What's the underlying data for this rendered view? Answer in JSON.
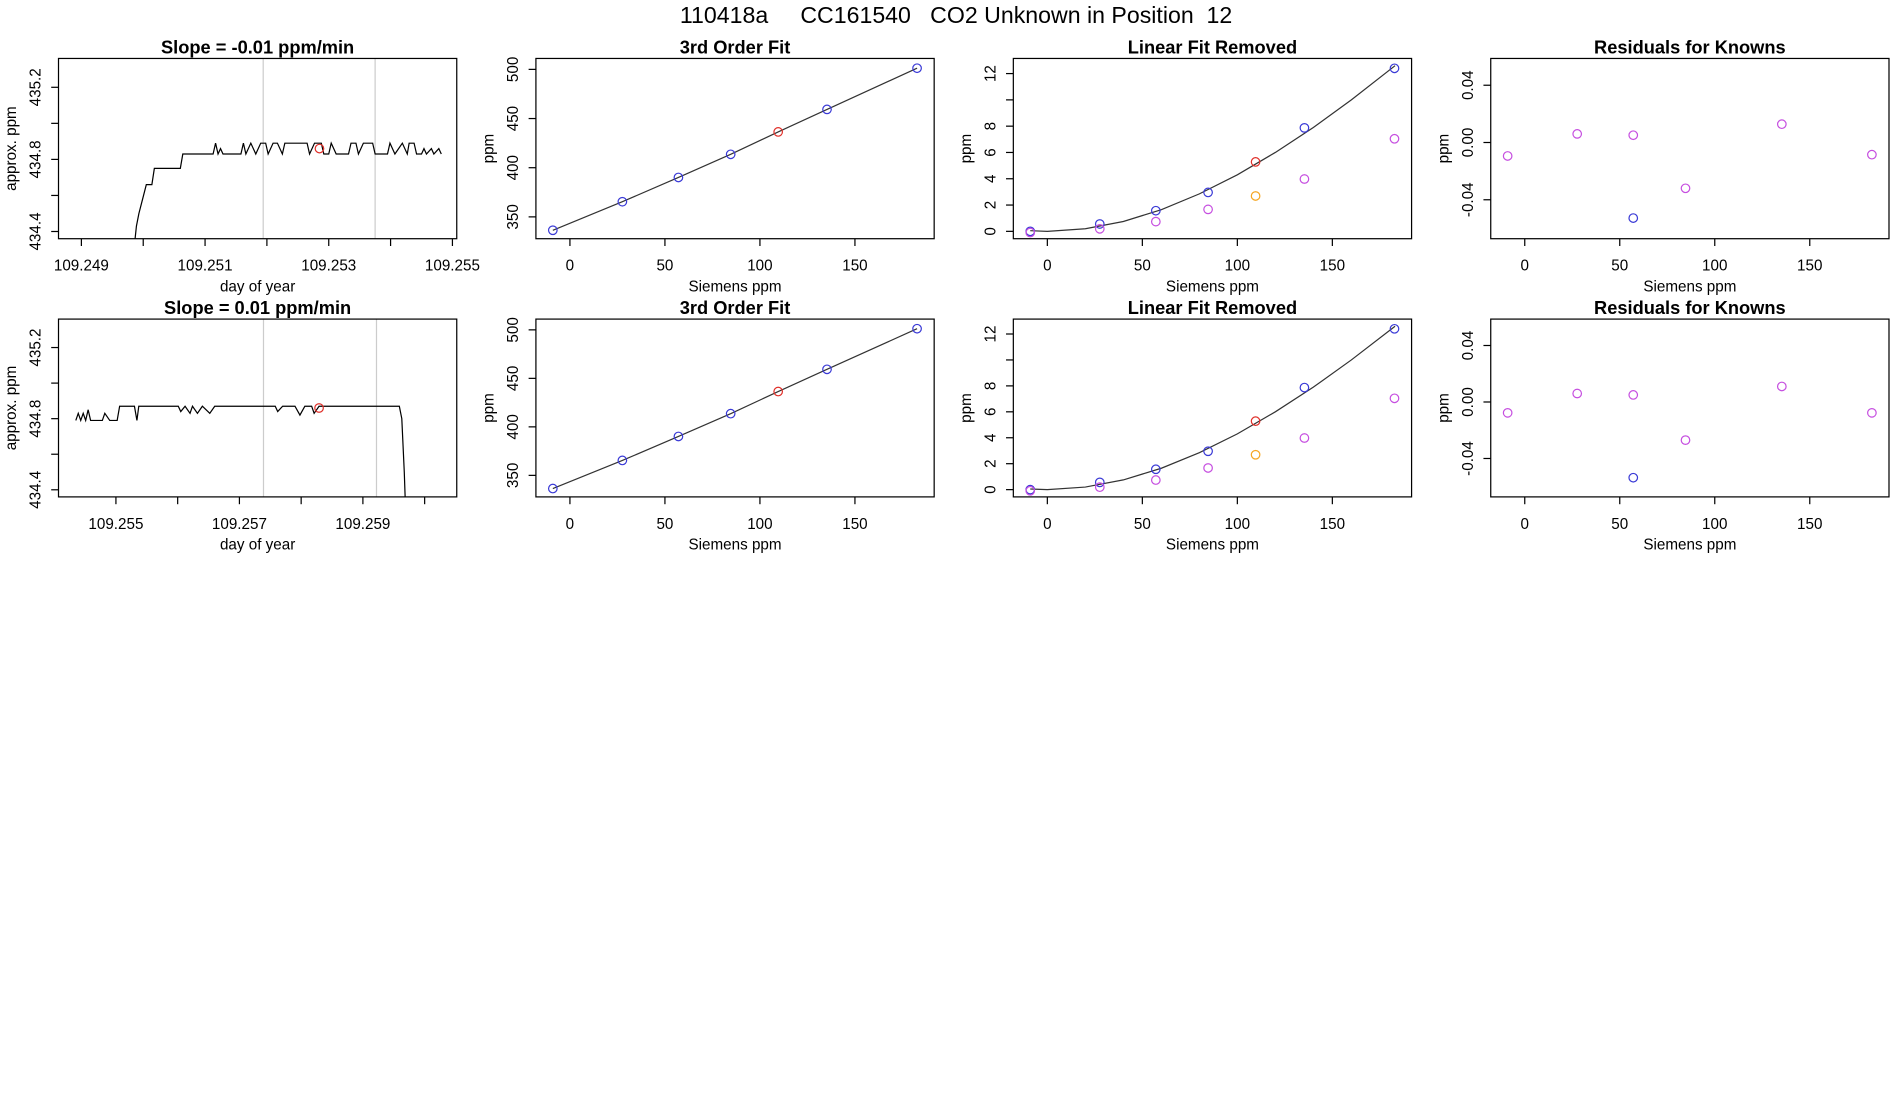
{
  "title": "110418a     CC161540   CO2 Unknown in Position  12",
  "chart_data": [
    {
      "type": "line",
      "title": "Slope =  -0.01  ppm/min",
      "xlabel": "day of year",
      "ylabel": "approx. ppm",
      "color": "#000000",
      "x": [
        109.24985,
        109.24989,
        109.24993,
        109.24999,
        109.25005,
        109.25014,
        109.25018,
        109.2506,
        109.25064,
        109.25113,
        109.25117,
        109.25121,
        109.25125,
        109.25129,
        109.25158,
        109.25162,
        109.25166,
        109.25174,
        109.25182,
        109.2519,
        109.25198,
        109.25202,
        109.2521,
        109.25217,
        109.25225,
        109.25229,
        109.25265,
        109.25269,
        109.25277,
        109.25288,
        109.25292,
        109.253,
        109.25304,
        109.25312,
        109.25332,
        109.25336,
        109.25344,
        109.25348,
        109.25356,
        109.25371,
        109.25375,
        109.25395,
        109.25399,
        109.25407,
        109.25419,
        109.25427,
        109.2543,
        109.25438,
        109.25442,
        109.2545,
        109.25454,
        109.25458,
        109.25466,
        109.2547,
        109.25478,
        109.25482
      ],
      "values": [
        434.3,
        434.43,
        434.5,
        434.58,
        434.66,
        434.66,
        434.75,
        434.75,
        434.83,
        434.83,
        434.89,
        434.83,
        434.86,
        434.83,
        434.83,
        434.89,
        434.83,
        434.89,
        434.83,
        434.89,
        434.89,
        434.83,
        434.89,
        434.89,
        434.83,
        434.89,
        434.89,
        434.83,
        434.89,
        434.89,
        434.83,
        434.83,
        434.89,
        434.83,
        434.83,
        434.89,
        434.89,
        434.83,
        434.89,
        434.89,
        434.83,
        434.83,
        434.89,
        434.83,
        434.89,
        434.83,
        434.89,
        434.89,
        434.83,
        434.83,
        434.86,
        434.83,
        434.86,
        434.83,
        434.86,
        434.83
      ],
      "xlim": [
        109.24863,
        109.25507
      ],
      "ylim": [
        434.36,
        435.36
      ],
      "xticks": [
        109.249,
        109.251,
        109.253,
        109.255
      ],
      "xminor_ticks": [
        109.25,
        109.252,
        109.254
      ],
      "yticks": [
        434.4,
        434.8,
        435.2
      ],
      "yminor_ticks": [
        434.6,
        435.0
      ],
      "vlines": [
        109.25194,
        109.25375
      ],
      "vline_color": "#cccccc",
      "highlight": {
        "x": 109.25285,
        "y": 434.86,
        "color": "#e0302a"
      }
    },
    {
      "type": "scatter",
      "title": "3rd Order Fit",
      "xlabel": "Siemens ppm",
      "ylabel": "ppm",
      "xlim": [
        -17.9,
        191.7
      ],
      "ylim": [
        327.8,
        511.1
      ],
      "xticks": [
        0,
        50,
        100,
        150
      ],
      "yticks": [
        350,
        400,
        450,
        500
      ],
      "curve": {
        "color": "#333333",
        "x": [
          -9,
          27.6,
          57.1,
          84.6,
          109.6,
          135.3,
          182.7
        ],
        "values": [
          336.4,
          365.4,
          390.1,
          413.6,
          436.4,
          459.3,
          501.2
        ]
      },
      "series": [
        {
          "color": "#3a3ad6",
          "x": [
            -9,
            27.6,
            57.1,
            84.6,
            135.3,
            182.7
          ],
          "values": [
            336.4,
            365.4,
            390.1,
            413.6,
            459.3,
            501.2
          ]
        },
        {
          "color": "#e0302a",
          "x": [
            109.6
          ],
          "values": [
            436.4
          ]
        }
      ]
    },
    {
      "type": "scatter",
      "title": "Linear Fit Removed",
      "xlabel": "Siemens ppm",
      "ylabel": "ppm",
      "xlim": [
        -17.9,
        191.7
      ],
      "ylim": [
        -0.56,
        13.15
      ],
      "xticks": [
        0,
        50,
        100,
        150
      ],
      "yticks": [
        0,
        2,
        4,
        6,
        8,
        12
      ],
      "yminor_ticks": [
        10
      ],
      "curve": {
        "color": "#333333",
        "x": [
          -9,
          0,
          20,
          40,
          60,
          80,
          100,
          120,
          140,
          160,
          183
        ],
        "values": [
          0.05,
          0,
          0.2,
          0.75,
          1.65,
          2.85,
          4.3,
          6.0,
          7.9,
          10.0,
          12.6
        ]
      },
      "series": [
        {
          "color": "#3a3ad6",
          "x": [
            -9,
            27.6,
            57.1,
            84.6,
            135.3,
            182.7
          ],
          "values": [
            0,
            0.56,
            1.57,
            2.96,
            7.87,
            12.4
          ]
        },
        {
          "color": "#e0302a",
          "x": [
            109.6
          ],
          "values": [
            5.28
          ]
        },
        {
          "color": "#c64fe0",
          "x": [
            -9,
            27.6,
            57.1,
            84.6,
            135.3,
            182.7
          ],
          "values": [
            -0.09,
            0.19,
            0.74,
            1.67,
            3.98,
            7.04
          ]
        },
        {
          "color": "#f5a623",
          "x": [
            109.6
          ],
          "values": [
            2.69
          ]
        }
      ]
    },
    {
      "type": "scatter",
      "title": "Residuals for Knowns",
      "xlabel": "Siemens ppm",
      "ylabel": "ppm",
      "xlim": [
        -17.9,
        191.7
      ],
      "ylim": [
        -0.0672,
        0.0587
      ],
      "xticks": [
        0,
        50,
        100,
        150
      ],
      "yticks": [
        -0.04,
        {
          "value": 0,
          "label": "0.00"
        },
        0.04
      ],
      "series": [
        {
          "color": "#c64fe0",
          "x": [
            -9,
            27.6,
            57.1,
            84.6,
            135.3,
            182.7
          ],
          "values": [
            -0.0094,
            0.006,
            0.0051,
            -0.032,
            0.0128,
            -0.0085
          ]
        },
        {
          "color": "#3a3ad6",
          "x": [
            57.1
          ],
          "values": [
            -0.0528
          ]
        }
      ]
    },
    {
      "type": "line",
      "title": "Slope =  0.01  ppm/min",
      "xlabel": "day of year",
      "ylabel": "approx. ppm",
      "color": "#000000",
      "x": [
        109.25435,
        109.25439,
        109.25443,
        109.25447,
        109.25451,
        109.25455,
        109.25459,
        109.25478,
        109.25482,
        109.2549,
        109.25502,
        109.25506,
        109.2553,
        109.25534,
        109.25537,
        109.25601,
        109.25605,
        109.25612,
        109.2562,
        109.25624,
        109.25632,
        109.2564,
        109.25652,
        109.2566,
        109.25758,
        109.25762,
        109.2577,
        109.2579,
        109.25798,
        109.25806,
        109.25817,
        109.25821,
        109.25829,
        109.25959,
        109.25963,
        109.25967,
        109.25969
      ],
      "values": [
        434.79,
        434.83,
        434.79,
        434.83,
        434.79,
        434.85,
        434.79,
        434.79,
        434.83,
        434.79,
        434.79,
        434.87,
        434.87,
        434.79,
        434.87,
        434.87,
        434.84,
        434.87,
        434.83,
        434.87,
        434.83,
        434.87,
        434.83,
        434.87,
        434.87,
        434.84,
        434.87,
        434.87,
        434.82,
        434.87,
        434.87,
        434.83,
        434.87,
        434.87,
        434.8,
        434.5,
        434.3
      ],
      "xlim": [
        109.25407,
        109.26052
      ],
      "ylim": [
        434.36,
        435.36
      ],
      "xticks": [
        109.255,
        109.257,
        109.259
      ],
      "xminor_ticks": [
        109.256,
        109.258,
        109.26
      ],
      "yticks": [
        434.4,
        434.8,
        435.2
      ],
      "yminor_ticks": [
        434.6,
        435.0
      ],
      "vlines": [
        109.25739,
        109.25922
      ],
      "vline_color": "#cccccc",
      "highlight": {
        "x": 109.25829,
        "y": 434.86,
        "color": "#e0302a"
      }
    },
    {
      "type": "scatter",
      "title": "3rd Order Fit",
      "xlabel": "Siemens ppm",
      "ylabel": "ppm",
      "xlim": [
        -17.9,
        191.7
      ],
      "ylim": [
        327.8,
        511.1
      ],
      "xticks": [
        0,
        50,
        100,
        150
      ],
      "yticks": [
        350,
        400,
        450,
        500
      ],
      "curve": {
        "color": "#333333",
        "x": [
          -9,
          27.6,
          57.1,
          84.6,
          109.6,
          135.3,
          182.7
        ],
        "values": [
          336.4,
          365.4,
          390.1,
          413.6,
          436.4,
          459.3,
          501.2
        ]
      },
      "series": [
        {
          "color": "#3a3ad6",
          "x": [
            -9,
            27.6,
            57.1,
            84.6,
            135.3,
            182.7
          ],
          "values": [
            336.4,
            365.4,
            390.1,
            413.6,
            459.3,
            501.2
          ]
        },
        {
          "color": "#e0302a",
          "x": [
            109.6
          ],
          "values": [
            436.4
          ]
        }
      ]
    },
    {
      "type": "scatter",
      "title": "Linear Fit Removed",
      "xlabel": "Siemens ppm",
      "ylabel": "ppm",
      "xlim": [
        -17.9,
        191.7
      ],
      "ylim": [
        -0.56,
        13.15
      ],
      "xticks": [
        0,
        50,
        100,
        150
      ],
      "yticks": [
        0,
        2,
        4,
        6,
        8,
        12
      ],
      "yminor_ticks": [
        10
      ],
      "curve": {
        "color": "#333333",
        "x": [
          -9,
          0,
          20,
          40,
          60,
          80,
          100,
          120,
          140,
          160,
          183
        ],
        "values": [
          0.05,
          0,
          0.2,
          0.75,
          1.65,
          2.85,
          4.3,
          6.0,
          7.9,
          10.0,
          12.6
        ]
      },
      "series": [
        {
          "color": "#3a3ad6",
          "x": [
            -9,
            27.6,
            57.1,
            84.6,
            135.3,
            182.7
          ],
          "values": [
            0,
            0.56,
            1.57,
            2.96,
            7.87,
            12.4
          ]
        },
        {
          "color": "#e0302a",
          "x": [
            109.6
          ],
          "values": [
            5.28
          ]
        },
        {
          "color": "#c64fe0",
          "x": [
            -9,
            27.6,
            57.1,
            84.6,
            135.3,
            182.7
          ],
          "values": [
            -0.09,
            0.19,
            0.74,
            1.67,
            3.98,
            7.04
          ]
        },
        {
          "color": "#f5a623",
          "x": [
            109.6
          ],
          "values": [
            2.69
          ]
        }
      ]
    },
    {
      "type": "scatter",
      "title": "Residuals for Knowns",
      "xlabel": "Siemens ppm",
      "ylabel": "ppm",
      "xlim": [
        -17.9,
        191.7
      ],
      "ylim": [
        -0.0672,
        0.0587
      ],
      "xticks": [
        0,
        50,
        100,
        150
      ],
      "yticks": [
        -0.04,
        {
          "value": 0,
          "label": "0.00"
        },
        0.04
      ],
      "series": [
        {
          "color": "#c64fe0",
          "x": [
            -9,
            27.6,
            57.1,
            84.6,
            135.3,
            182.7
          ],
          "values": [
            -0.0077,
            0.006,
            0.005,
            -0.027,
            0.011,
            -0.0077
          ]
        },
        {
          "color": "#3a3ad6",
          "x": [
            57.1
          ],
          "values": [
            -0.0536
          ]
        }
      ]
    }
  ]
}
